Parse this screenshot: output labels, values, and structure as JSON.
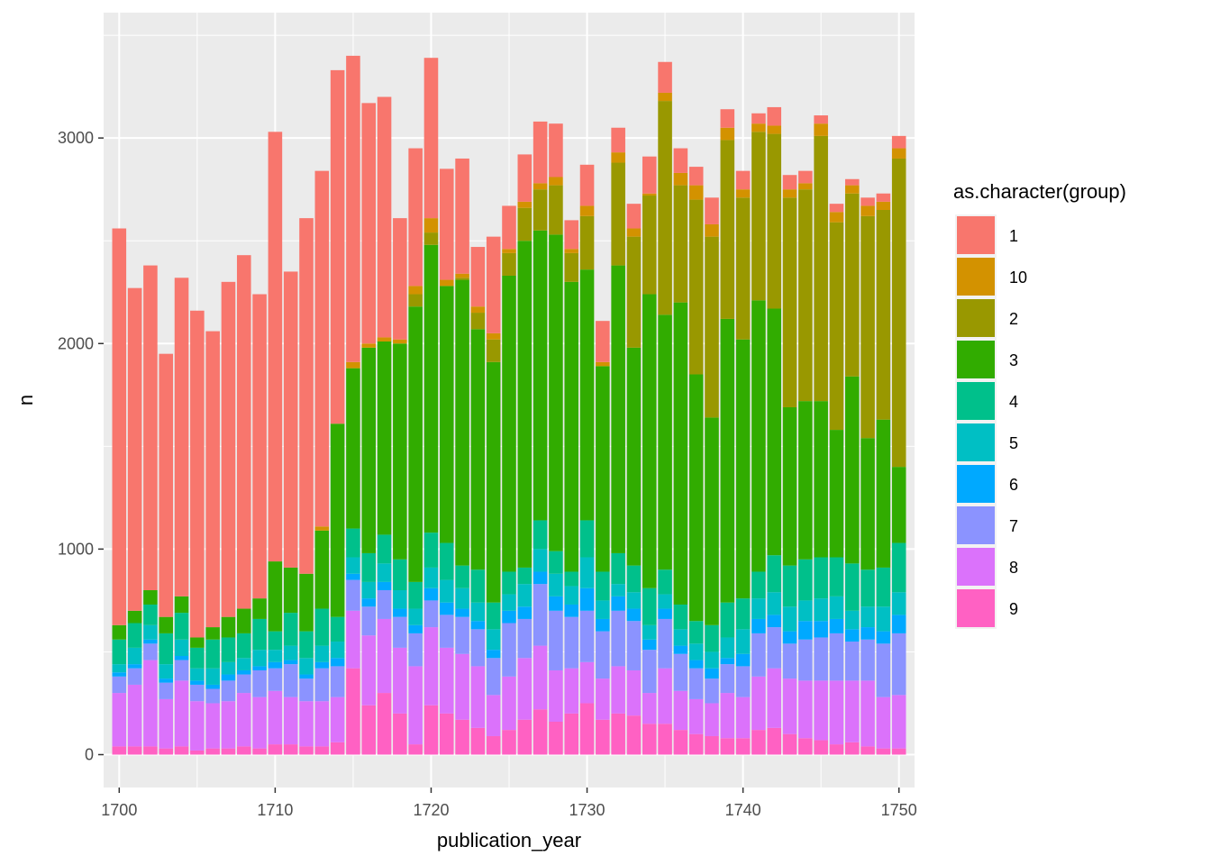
{
  "chart_data": {
    "type": "bar",
    "stacked": true,
    "xlabel": "publication_year",
    "ylabel": "n",
    "ylim": [
      -160,
      3610
    ],
    "xlim": [
      1699.0,
      1751.0
    ],
    "x_ticks": [
      1700,
      1710,
      1720,
      1730,
      1740,
      1750
    ],
    "y_ticks": [
      0,
      1000,
      2000,
      3000
    ],
    "grid": true,
    "legend": {
      "title": "as.character(group)",
      "position": "right",
      "entries": [
        "1",
        "10",
        "2",
        "3",
        "4",
        "5",
        "6",
        "7",
        "8",
        "9"
      ]
    },
    "stack_order_bottom_to_top": [
      "9",
      "8",
      "7",
      "6",
      "5",
      "4",
      "3",
      "2",
      "10",
      "1"
    ],
    "x": [
      1700,
      1701,
      1702,
      1703,
      1704,
      1705,
      1706,
      1707,
      1708,
      1709,
      1710,
      1711,
      1712,
      1713,
      1714,
      1715,
      1716,
      1717,
      1718,
      1719,
      1720,
      1721,
      1722,
      1723,
      1724,
      1725,
      1726,
      1727,
      1728,
      1729,
      1730,
      1731,
      1732,
      1733,
      1734,
      1735,
      1736,
      1737,
      1738,
      1739,
      1740,
      1741,
      1742,
      1743,
      1744,
      1745,
      1746,
      1747,
      1748,
      1749,
      1750
    ],
    "series": [
      {
        "name": "9",
        "color": "#FF61C3",
        "values": [
          40,
          40,
          40,
          30,
          40,
          20,
          30,
          30,
          40,
          30,
          50,
          50,
          40,
          40,
          60,
          420,
          240,
          300,
          200,
          50,
          240,
          200,
          170,
          130,
          90,
          120,
          170,
          220,
          160,
          200,
          250,
          170,
          200,
          190,
          150,
          150,
          120,
          100,
          90,
          80,
          80,
          120,
          130,
          100,
          80,
          70,
          50,
          60,
          40,
          30,
          30
        ]
      },
      {
        "name": "8",
        "color": "#DB72FB",
        "values": [
          260,
          300,
          420,
          240,
          320,
          240,
          220,
          230,
          260,
          250,
          260,
          230,
          220,
          220,
          220,
          280,
          340,
          360,
          320,
          380,
          380,
          320,
          320,
          300,
          200,
          260,
          300,
          310,
          250,
          220,
          200,
          200,
          230,
          220,
          150,
          270,
          190,
          170,
          160,
          220,
          200,
          260,
          290,
          270,
          280,
          290,
          310,
          300,
          320,
          250,
          260
        ]
      },
      {
        "name": "7",
        "color": "#8B93FF",
        "values": [
          80,
          80,
          80,
          80,
          100,
          80,
          70,
          100,
          90,
          130,
          110,
          160,
          110,
          160,
          150,
          150,
          140,
          140,
          150,
          160,
          130,
          160,
          180,
          180,
          180,
          260,
          190,
          300,
          290,
          250,
          250,
          230,
          270,
          240,
          210,
          240,
          180,
          150,
          120,
          140,
          150,
          210,
          200,
          170,
          200,
          210,
          230,
          190,
          200,
          260,
          300
        ]
      },
      {
        "name": "6",
        "color": "#00A9FF",
        "values": [
          20,
          20,
          20,
          20,
          20,
          20,
          20,
          30,
          20,
          20,
          30,
          20,
          20,
          30,
          40,
          30,
          40,
          40,
          40,
          40,
          60,
          60,
          40,
          40,
          40,
          60,
          60,
          60,
          70,
          60,
          110,
          60,
          70,
          60,
          50,
          50,
          40,
          40,
          50,
          30,
          60,
          70,
          60,
          60,
          90,
          80,
          70,
          60,
          60,
          60,
          90
        ]
      },
      {
        "name": "5",
        "color": "#00BFC4",
        "values": [
          40,
          80,
          70,
          70,
          80,
          60,
          80,
          60,
          60,
          80,
          60,
          70,
          80,
          80,
          80,
          80,
          80,
          90,
          90,
          80,
          100,
          110,
          100,
          90,
          100,
          80,
          110,
          110,
          110,
          90,
          150,
          90,
          60,
          80,
          70,
          70,
          80,
          80,
          80,
          100,
          120,
          100,
          110,
          120,
          100,
          110,
          110,
          90,
          100,
          120,
          110
        ]
      },
      {
        "name": "4",
        "color": "#00C08B",
        "values": [
          120,
          120,
          100,
          150,
          130,
          100,
          140,
          120,
          120,
          150,
          90,
          160,
          130,
          180,
          120,
          140,
          140,
          140,
          150,
          130,
          170,
          180,
          110,
          160,
          130,
          110,
          80,
          140,
          110,
          70,
          180,
          140,
          150,
          130,
          180,
          120,
          120,
          110,
          130,
          170,
          150,
          130,
          180,
          200,
          200,
          200,
          190,
          230,
          180,
          190,
          240
        ]
      },
      {
        "name": "3",
        "color": "#31AC00",
        "values": [
          70,
          60,
          70,
          80,
          80,
          50,
          60,
          100,
          120,
          100,
          340,
          220,
          280,
          380,
          940,
          780,
          1000,
          940,
          1050,
          1340,
          1400,
          1250,
          1390,
          1170,
          1170,
          1440,
          1590,
          1410,
          1540,
          1410,
          1220,
          1000,
          1400,
          1060,
          1430,
          1240,
          1470,
          1200,
          1010,
          1380,
          1260,
          1320,
          1200,
          770,
          770,
          760,
          620,
          910,
          640,
          720,
          370
        ]
      },
      {
        "name": "2",
        "color": "#999800",
        "values": [
          0,
          0,
          0,
          0,
          0,
          0,
          0,
          0,
          0,
          0,
          0,
          0,
          0,
          0,
          0,
          0,
          0,
          0,
          0,
          60,
          60,
          0,
          10,
          80,
          110,
          110,
          160,
          200,
          240,
          140,
          260,
          0,
          500,
          540,
          480,
          1040,
          570,
          850,
          880,
          870,
          690,
          820,
          850,
          1020,
          1030,
          1290,
          1010,
          890,
          1080,
          1020,
          1500
        ]
      },
      {
        "name": "10",
        "color": "#D39200",
        "values": [
          0,
          0,
          0,
          0,
          0,
          0,
          0,
          0,
          0,
          0,
          0,
          0,
          0,
          20,
          0,
          30,
          20,
          20,
          20,
          40,
          70,
          30,
          20,
          30,
          30,
          20,
          30,
          30,
          40,
          20,
          50,
          20,
          50,
          40,
          10,
          40,
          60,
          70,
          60,
          60,
          40,
          40,
          40,
          40,
          30,
          60,
          50,
          40,
          50,
          40,
          50
        ]
      },
      {
        "name": "1",
        "color": "#F8766D",
        "values": [
          1930,
          1570,
          1580,
          1280,
          1550,
          1590,
          1440,
          1630,
          1720,
          1480,
          2090,
          1440,
          1730,
          1730,
          1720,
          1490,
          1170,
          1170,
          590,
          670,
          780,
          540,
          560,
          290,
          470,
          210,
          230,
          300,
          260,
          140,
          200,
          200,
          120,
          120,
          180,
          150,
          120,
          90,
          130,
          90,
          90,
          50,
          90,
          70,
          60,
          40,
          40,
          30,
          40,
          40,
          60
        ]
      }
    ]
  }
}
